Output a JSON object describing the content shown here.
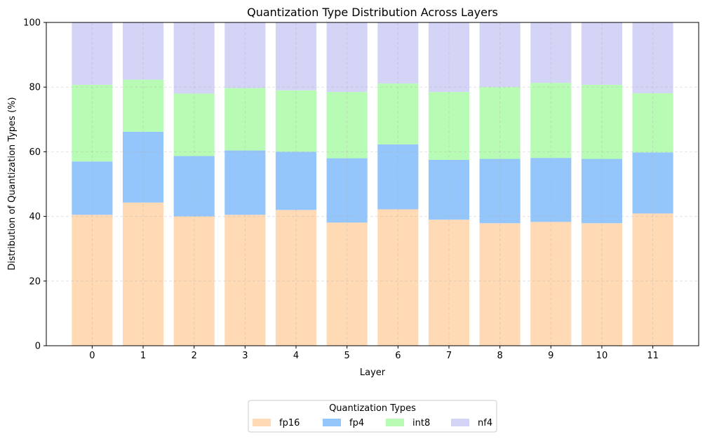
{
  "chart_data": {
    "type": "bar",
    "stacked": true,
    "title": "Quantization Type Distribution Across Layers",
    "xlabel": "Layer",
    "ylabel": "Distribution of Quantization Types (%)",
    "ylim": [
      0,
      100
    ],
    "yticks": [
      0,
      20,
      40,
      60,
      80,
      100
    ],
    "grid": true,
    "legend": {
      "title": "Quantization Types",
      "placement": "bottom-center"
    },
    "categories": [
      "0",
      "1",
      "2",
      "3",
      "4",
      "5",
      "6",
      "7",
      "8",
      "9",
      "10",
      "11"
    ],
    "series": [
      {
        "name": "fp16",
        "color": "#ffdab4",
        "values": [
          40.5,
          44.3,
          40.0,
          40.5,
          42.0,
          38.1,
          42.2,
          39.0,
          37.9,
          38.3,
          37.9,
          40.9
        ]
      },
      {
        "name": "fp4",
        "color": "#95c6fb",
        "values": [
          16.5,
          21.9,
          18.7,
          19.9,
          18.0,
          19.9,
          20.1,
          18.5,
          19.9,
          19.8,
          19.9,
          18.9
        ]
      },
      {
        "name": "int8",
        "color": "#b8fbb4",
        "values": [
          23.7,
          16.1,
          19.3,
          19.3,
          19.0,
          20.5,
          18.8,
          21.0,
          22.2,
          23.2,
          22.9,
          18.3
        ]
      },
      {
        "name": "nf4",
        "color": "#d4d4f6",
        "values": [
          19.3,
          17.7,
          22.0,
          20.3,
          21.0,
          21.5,
          18.9,
          21.5,
          20.0,
          18.7,
          19.3,
          21.9
        ]
      }
    ]
  }
}
